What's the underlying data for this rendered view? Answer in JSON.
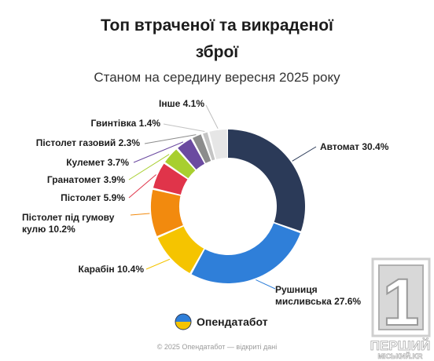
{
  "title_line1": "Топ втраченої та викраденої",
  "title_line2": "зброї",
  "subtitle": "Станом на середину вересня 2025 року",
  "chart_data": {
    "type": "pie",
    "donut": true,
    "slices": [
      {
        "name": "Автомат",
        "value": 30.4,
        "label": "Автомат 30.4%",
        "color": "#2b3a58"
      },
      {
        "name": "Рушниця мисливська",
        "value": 27.6,
        "label": "Рушниця мисливська 27.6%",
        "color": "#2f7fd9"
      },
      {
        "name": "Карабін",
        "value": 10.4,
        "label": "Карабін 10.4%",
        "color": "#f5c400"
      },
      {
        "name": "Пістолет під гумову кулю",
        "value": 10.2,
        "label": "Пістолет під гумову кулю 10.2%",
        "color": "#f28a0e"
      },
      {
        "name": "Пістолет",
        "value": 5.9,
        "label": "Пістолет 5.9%",
        "color": "#e0344a"
      },
      {
        "name": "Гранатомет",
        "value": 3.9,
        "label": "Гранатомет 3.9%",
        "color": "#a8cf2f"
      },
      {
        "name": "Кулемет",
        "value": 3.7,
        "label": "Кулемет 3.7%",
        "color": "#6b4aa0"
      },
      {
        "name": "Пістолет газовий",
        "value": 2.3,
        "label": "Пістолет газовий 2.3%",
        "color": "#8c8c8c"
      },
      {
        "name": "Гвинтівка",
        "value": 1.4,
        "label": "Гвинтівка 1.4%",
        "color": "#c4c4c4"
      },
      {
        "name": "Інше",
        "value": 4.1,
        "label": "Інше 4.1%",
        "color": "#e6e6e6"
      }
    ],
    "label_lines": {
      "Автомат": [
        "Автомат 30.4%"
      ],
      "Рушниця мисливська": [
        "Рушниця",
        "мисливська 27.6%"
      ],
      "Карабін": [
        "Карабін 10.4%"
      ],
      "Пістолет під гумову кулю": [
        "Пістолет під гумову",
        "кулю 10.2%"
      ],
      "Пістолет": [
        "Пістолет 5.9%"
      ],
      "Гранатомет": [
        "Гранатомет 3.9%"
      ],
      "Кулемет": [
        "Кулемет 3.7%"
      ],
      "Пістолет газовий": [
        "Пістолет газовий 2.3%"
      ],
      "Гвинтівка": [
        "Гвинтівка 1.4%"
      ],
      "Інше": [
        "Інше 4.1%"
      ]
    }
  },
  "brand": {
    "name": "Опендатабот"
  },
  "footer": "© 2025 Опендатабот — відкриті дані",
  "watermark": {
    "digit": "1",
    "line1": "ПЕРШИЙ",
    "line2": "МІСЬКИЙ.KR"
  }
}
